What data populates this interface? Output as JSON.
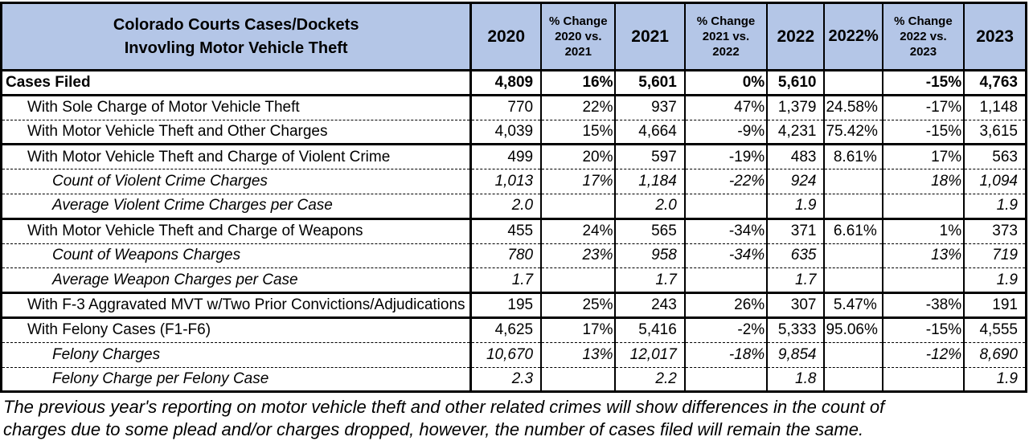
{
  "table": {
    "title": "Colorado Courts Cases/Dockets\nInvovling Motor Vehicle Theft",
    "header_bg": "#b4c6e7",
    "columns": [
      "2020",
      "% Change\n2020 vs.\n2021",
      "2021",
      "% Change\n2021 vs.\n2022",
      "2022",
      "2022%",
      "% Change\n2022 vs.\n2023",
      "2023"
    ],
    "rows": [
      {
        "label": "Cases Filed",
        "level": 1,
        "bold": true,
        "italic": false,
        "border_top": "thick",
        "values": [
          "4,809",
          "16%",
          "5,601",
          "0%",
          "5,610",
          "",
          "-15%",
          "4,763"
        ]
      },
      {
        "label": "With Sole Charge of Motor Vehicle Theft",
        "level": 2,
        "bold": false,
        "italic": false,
        "border_top": "thick",
        "values": [
          "770",
          "22%",
          "937",
          "47%",
          "1,379",
          "24.58%",
          "-17%",
          "1,148"
        ]
      },
      {
        "label": "With Motor Vehicle Theft and Other Charges",
        "level": 2,
        "bold": false,
        "italic": false,
        "border_top": "dashed",
        "values": [
          "4,039",
          "15%",
          "4,664",
          "-9%",
          "4,231",
          "75.42%",
          "-15%",
          "3,615"
        ]
      },
      {
        "label": "With Motor Vehicle Theft and Charge of Violent Crime",
        "level": 2,
        "bold": false,
        "italic": false,
        "border_top": "thick",
        "values": [
          "499",
          "20%",
          "597",
          "-19%",
          "483",
          "8.61%",
          "17%",
          "563"
        ]
      },
      {
        "label": "Count of Violent Crime Charges",
        "level": 3,
        "bold": false,
        "italic": true,
        "border_top": "dashed",
        "values": [
          "1,013",
          "17%",
          "1,184",
          "-22%",
          "924",
          "",
          "18%",
          "1,094"
        ]
      },
      {
        "label": "Average Violent Crime Charges per Case",
        "level": 3,
        "bold": false,
        "italic": true,
        "border_top": "dashed",
        "values": [
          "2.0",
          "",
          "2.0",
          "",
          "1.9",
          "",
          "",
          "1.9"
        ]
      },
      {
        "label": "With Motor Vehicle Theft and Charge of Weapons",
        "level": 2,
        "bold": false,
        "italic": false,
        "border_top": "thick",
        "values": [
          "455",
          "24%",
          "565",
          "-34%",
          "371",
          "6.61%",
          "1%",
          "373"
        ]
      },
      {
        "label": "Count of Weapons Charges",
        "level": 3,
        "bold": false,
        "italic": true,
        "border_top": "dashed",
        "values": [
          "780",
          "23%",
          "958",
          "-34%",
          "635",
          "",
          "13%",
          "719"
        ]
      },
      {
        "label": "Average Weapon Charges per Case",
        "level": 3,
        "bold": false,
        "italic": true,
        "border_top": "dashed",
        "values": [
          "1.7",
          "",
          "1.7",
          "",
          "1.7",
          "",
          "",
          "1.9"
        ]
      },
      {
        "label": "With F-3 Aggravated MVT w/Two Prior Convictions/Adjudications",
        "level": 2,
        "bold": false,
        "italic": false,
        "border_top": "thick",
        "values": [
          "195",
          "25%",
          "243",
          "26%",
          "307",
          "5.47%",
          "-38%",
          "191"
        ]
      },
      {
        "label": "With Felony Cases (F1-F6)",
        "level": 2,
        "bold": false,
        "italic": false,
        "border_top": "thick",
        "values": [
          "4,625",
          "17%",
          "5,416",
          "-2%",
          "5,333",
          "95.06%",
          "-15%",
          "4,555"
        ]
      },
      {
        "label": "Felony Charges",
        "level": 3,
        "bold": false,
        "italic": true,
        "border_top": "dashed",
        "values": [
          "10,670",
          "13%",
          "12,017",
          "-18%",
          "9,854",
          "",
          "-12%",
          "8,690"
        ]
      },
      {
        "label": "Felony Charge per Felony Case",
        "level": 3,
        "bold": false,
        "italic": true,
        "border_top": "dashed",
        "values": [
          "2.3",
          "",
          "2.2",
          "",
          "1.8",
          "",
          "",
          "1.9"
        ]
      }
    ]
  },
  "footnote": "The previous year's reporting on motor vehicle theft and other related crimes will show differences in the count of\ncharges due to some plead and/or charges dropped, however, the number of cases filed will remain the same."
}
